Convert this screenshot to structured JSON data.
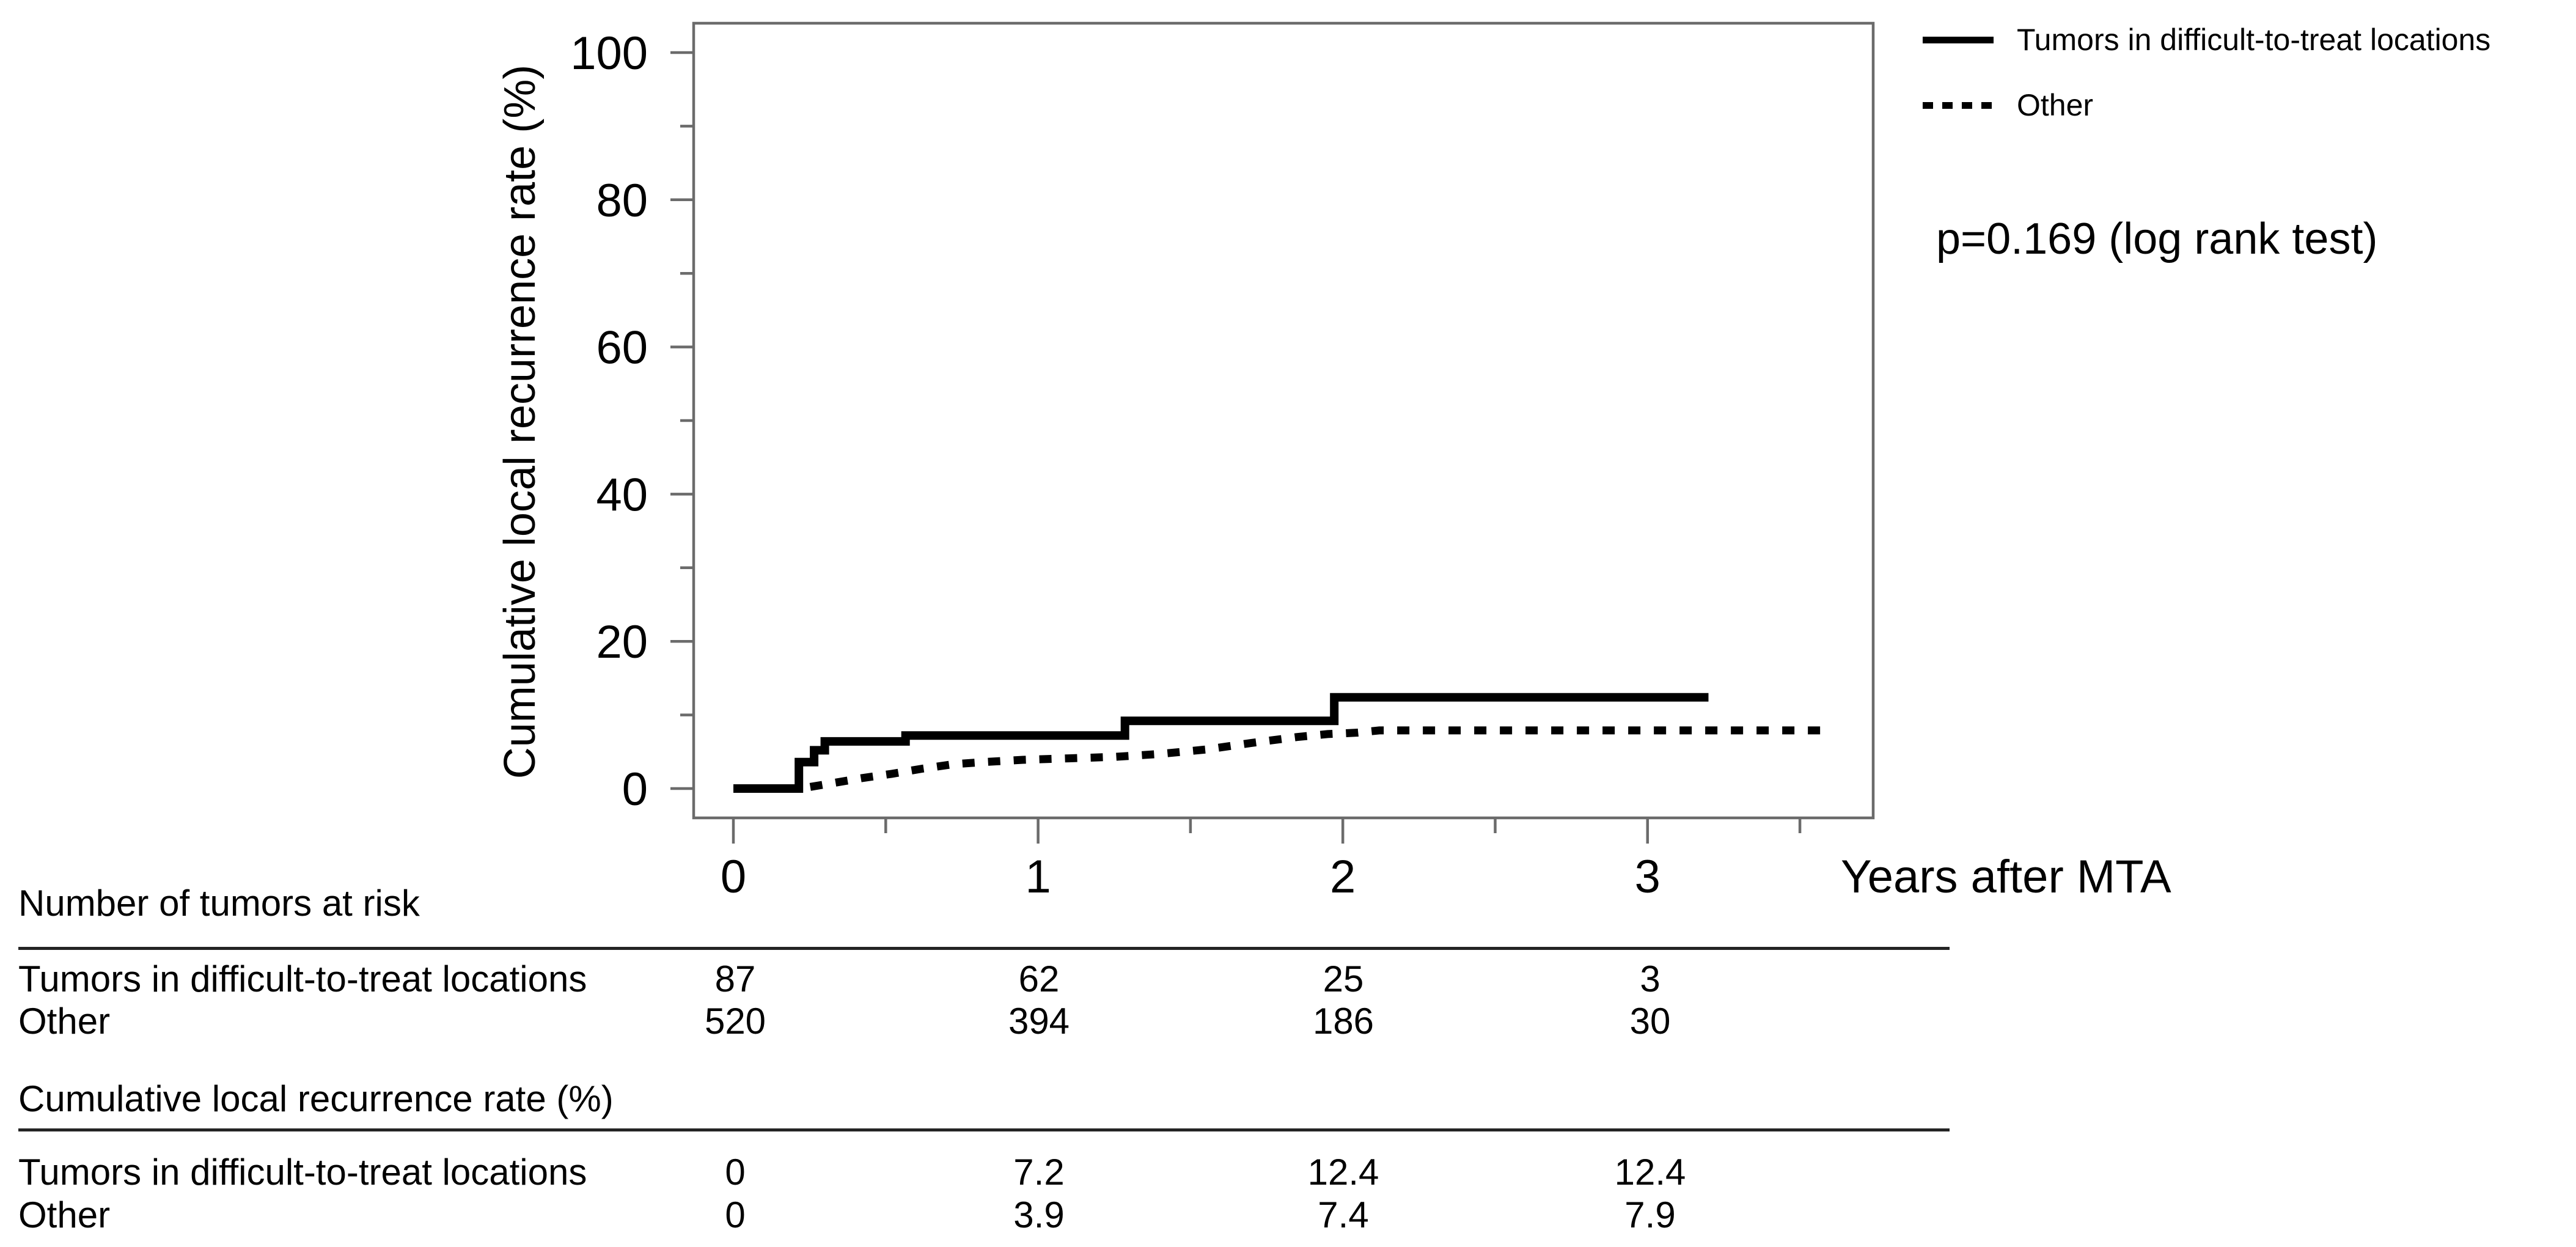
{
  "chart_data": {
    "type": "line",
    "subtype": "cumulative-incidence-step-curves",
    "title": "",
    "xlabel": "Years after MTA",
    "ylabel": "Cumulative local recurrence rate (%)",
    "xlim": [
      0,
      3.74
    ],
    "ylim": [
      0,
      100
    ],
    "x_major_ticks": [
      0,
      1,
      2,
      3
    ],
    "x_minor_ticks": [
      0.5,
      1.5,
      2.5,
      3.5
    ],
    "y_major_ticks": [
      0,
      20,
      40,
      60,
      80,
      100
    ],
    "y_minor_ticks": [
      10,
      30,
      50,
      70,
      90
    ],
    "grid": false,
    "legend_position": "outside-top-right",
    "annotation": "p=0.169 (log rank test)",
    "series": [
      {
        "name": "Tumors in difficult-to-treat locations",
        "style": "solid",
        "points": [
          [
            0,
            0
          ],
          [
            0.215,
            0
          ],
          [
            0.215,
            3.6
          ],
          [
            0.265,
            3.6
          ],
          [
            0.265,
            5.2
          ],
          [
            0.3,
            5.2
          ],
          [
            0.3,
            6.4
          ],
          [
            0.565,
            6.4
          ],
          [
            0.565,
            7.2
          ],
          [
            1.285,
            7.2
          ],
          [
            1.285,
            9.2
          ],
          [
            1.972,
            9.2
          ],
          [
            1.972,
            12.4
          ],
          [
            3.2,
            12.4
          ]
        ]
      },
      {
        "name": "Other",
        "style": "dotted",
        "points": [
          [
            0,
            0
          ],
          [
            0.22,
            0
          ],
          [
            0.32,
            0.7
          ],
          [
            0.42,
            1.4
          ],
          [
            0.52,
            2.0
          ],
          [
            0.62,
            2.7
          ],
          [
            0.72,
            3.3
          ],
          [
            0.82,
            3.6
          ],
          [
            0.95,
            3.9
          ],
          [
            1.1,
            4.1
          ],
          [
            1.25,
            4.3
          ],
          [
            1.4,
            4.7
          ],
          [
            1.55,
            5.3
          ],
          [
            1.7,
            6.2
          ],
          [
            1.85,
            7.0
          ],
          [
            1.95,
            7.4
          ],
          [
            2.05,
            7.6
          ],
          [
            2.12,
            7.9
          ],
          [
            3.6,
            7.9
          ]
        ]
      }
    ]
  },
  "tables": [
    {
      "heading": "Number of tumors at risk",
      "rows": [
        {
          "label": "Tumors in difficult-to-treat locations",
          "values": [
            "87",
            "62",
            "25",
            "3"
          ]
        },
        {
          "label": "Other",
          "values": [
            "520",
            "394",
            "186",
            "30"
          ]
        }
      ]
    },
    {
      "heading": "Cumulative local recurrence rate (%)",
      "rows": [
        {
          "label": "Tumors in difficult-to-treat locations",
          "values": [
            "0",
            "7.2",
            "12.4",
            "12.4"
          ]
        },
        {
          "label": "Other",
          "values": [
            "0",
            "3.9",
            "7.4",
            "7.9"
          ]
        }
      ]
    }
  ],
  "colors": {
    "curve": "#000000",
    "axis": "#6b6b6b",
    "text": "#000000",
    "background": "#ffffff"
  }
}
